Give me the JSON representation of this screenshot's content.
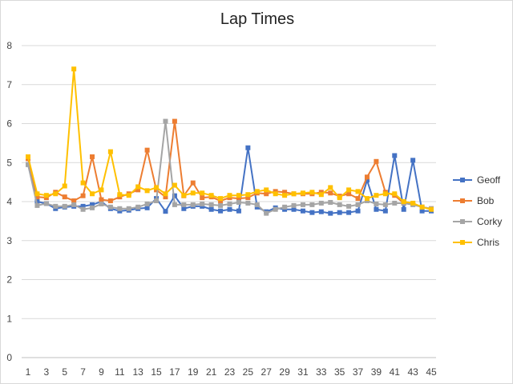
{
  "chart_data": {
    "type": "line",
    "title": "Lap Times",
    "xlabel": "",
    "ylabel": "",
    "ylim": [
      0,
      8
    ],
    "yticks": [
      0,
      1,
      2,
      3,
      4,
      5,
      6,
      7,
      8
    ],
    "xlim": [
      1,
      45
    ],
    "xtick_labels": [
      "1",
      "3",
      "5",
      "7",
      "9",
      "11",
      "13",
      "15",
      "17",
      "19",
      "21",
      "23",
      "25",
      "27",
      "29",
      "31",
      "33",
      "35",
      "37",
      "39",
      "41",
      "43",
      "45"
    ],
    "x": [
      1,
      2,
      3,
      4,
      5,
      6,
      7,
      8,
      9,
      10,
      11,
      12,
      13,
      14,
      15,
      16,
      17,
      18,
      19,
      20,
      21,
      22,
      23,
      24,
      25,
      26,
      27,
      28,
      29,
      30,
      31,
      32,
      33,
      34,
      35,
      36,
      37,
      38,
      39,
      40,
      41,
      42,
      43,
      44,
      45
    ],
    "grid": true,
    "legend_position": "right",
    "series": [
      {
        "name": "Geoff",
        "color": "#4472c4",
        "values": [
          4.95,
          4.0,
          3.95,
          3.82,
          3.86,
          3.88,
          3.88,
          3.92,
          4.0,
          3.82,
          3.76,
          3.78,
          3.82,
          3.84,
          4.08,
          3.75,
          4.15,
          3.82,
          3.88,
          3.88,
          3.8,
          3.76,
          3.8,
          3.76,
          5.38,
          3.86,
          3.74,
          3.84,
          3.8,
          3.8,
          3.76,
          3.72,
          3.74,
          3.7,
          3.72,
          3.72,
          3.76,
          4.55,
          3.8,
          3.76,
          5.18,
          3.8,
          5.06,
          3.76,
          3.76
        ]
      },
      {
        "name": "Bob",
        "color": "#ed7d31",
        "values": [
          5.1,
          4.12,
          4.1,
          4.24,
          4.12,
          4.02,
          4.15,
          5.15,
          4.05,
          4.02,
          4.12,
          4.2,
          4.3,
          5.32,
          4.3,
          4.12,
          6.06,
          4.15,
          4.48,
          4.1,
          4.12,
          4.02,
          4.1,
          4.08,
          4.1,
          4.22,
          4.2,
          4.26,
          4.24,
          4.2,
          4.2,
          4.2,
          4.24,
          4.22,
          4.14,
          4.2,
          4.08,
          4.63,
          5.03,
          4.24,
          4.16,
          3.96,
          3.94,
          3.86,
          3.82
        ]
      },
      {
        "name": "Corky",
        "color": "#a5a5a5",
        "values": [
          4.95,
          3.9,
          3.95,
          3.88,
          3.88,
          3.92,
          3.8,
          3.84,
          3.94,
          3.86,
          3.82,
          3.82,
          3.86,
          3.94,
          4.02,
          6.06,
          3.92,
          3.92,
          3.92,
          3.94,
          3.92,
          3.9,
          3.94,
          3.98,
          3.96,
          3.92,
          3.7,
          3.8,
          3.86,
          3.9,
          3.92,
          3.92,
          3.96,
          3.98,
          3.92,
          3.88,
          3.92,
          4.02,
          3.94,
          3.92,
          3.96,
          3.96,
          3.92,
          3.86,
          3.82
        ]
      },
      {
        "name": "Chris",
        "color": "#ffc000",
        "values": [
          5.15,
          4.2,
          4.16,
          4.2,
          4.4,
          7.4,
          4.48,
          4.2,
          4.3,
          5.28,
          4.18,
          4.16,
          4.38,
          4.28,
          4.36,
          4.2,
          4.42,
          4.16,
          4.22,
          4.22,
          4.16,
          4.08,
          4.16,
          4.16,
          4.18,
          4.26,
          4.3,
          4.2,
          4.16,
          4.2,
          4.22,
          4.24,
          4.18,
          4.36,
          4.1,
          4.3,
          4.26,
          4.08,
          4.16,
          4.2,
          4.2,
          4.0,
          3.96,
          3.86,
          3.8
        ]
      }
    ]
  }
}
